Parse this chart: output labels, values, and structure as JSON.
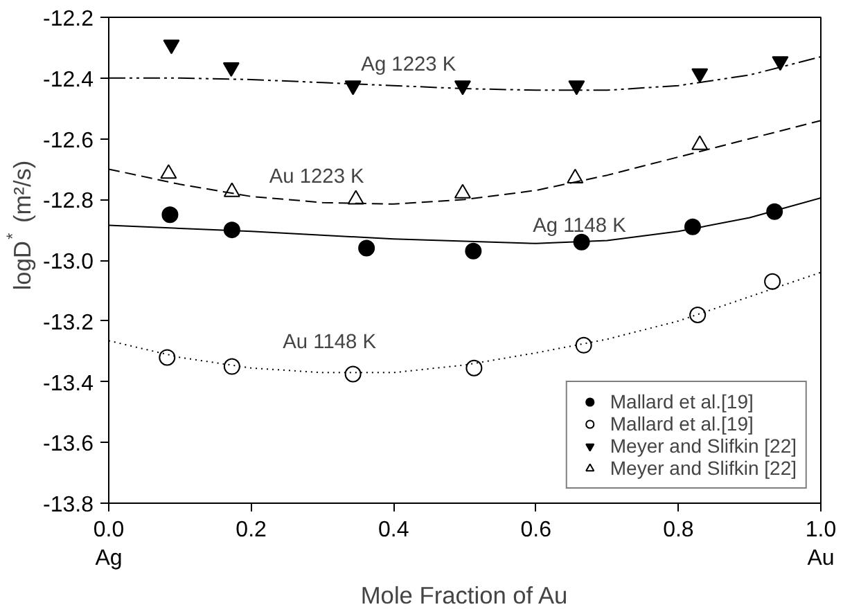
{
  "chart_data": {
    "type": "scatter",
    "xlabel": "Mole Fraction of Au",
    "ylabel": "logD$^{*}$ (m²/s)",
    "xlim": [
      0,
      1
    ],
    "ylim": [
      -13.8,
      -12.2
    ],
    "xticks": [
      {
        "value": 0,
        "label": "0.0\nAg"
      },
      0.2,
      0.4,
      0.6,
      0.8,
      {
        "value": 1,
        "label": "1.0\nAu"
      }
    ],
    "yticks": [
      -13.8,
      -13.6,
      -13.4,
      -13.2,
      {
        "value": -13.0,
        "label": "-13.0"
      },
      -12.8,
      -12.6,
      -12.4,
      -12.2
    ],
    "grid": false,
    "legend": "bottom right",
    "series": [
      {
        "name": "Mallard et al.[19]",
        "color": "#000000",
        "marker": "circle",
        "x": [
          0.086,
          0.173,
          0.362,
          0.512,
          0.664,
          0.82,
          0.935
        ],
        "values": [
          -12.85,
          -12.9,
          -12.96,
          -12.97,
          -12.94,
          -12.89,
          -12.84
        ]
      },
      {
        "name": "Mallard et al.[19]",
        "color": "#ffffff",
        "marker": "circle",
        "x": [
          0.082,
          0.173,
          0.343,
          0.513,
          0.667,
          0.827,
          0.932
        ],
        "values": [
          -13.32,
          -13.35,
          -13.375,
          -13.355,
          -13.28,
          -13.18,
          -13.07
        ]
      },
      {
        "name": "Meyer and Slifkin [22]",
        "color": "#000000",
        "marker": "triangle",
        "x": [
          0.088,
          0.172,
          0.343,
          0.497,
          0.657,
          0.83,
          0.943
        ],
        "values": [
          -12.29,
          -12.365,
          -12.425,
          -12.425,
          -12.425,
          -12.385,
          -12.345
        ]
      },
      {
        "name": "Meyer and Slifkin [22]",
        "color": "#ffffff",
        "marker": "triangle",
        "x": [
          0.084,
          0.173,
          0.347,
          0.497,
          0.655,
          0.83
        ],
        "values": [
          -12.715,
          -12.775,
          -12.8,
          -12.78,
          -12.73,
          -12.62
        ]
      },
      {
        "type": "line",
        "color": "#000000",
        "line_style": "dashdotdot",
        "x": [
          0,
          0.1,
          0.2,
          0.3,
          0.4,
          0.5,
          0.6,
          0.7,
          0.8,
          0.9,
          1.0
        ],
        "values": [
          -12.4,
          -12.4,
          -12.405,
          -12.415,
          -12.425,
          -12.435,
          -12.44,
          -12.44,
          -12.425,
          -12.39,
          -12.33
        ]
      },
      {
        "type": "line",
        "color": "#000000",
        "line_style": "dashed",
        "x": [
          0,
          0.1,
          0.2,
          0.3,
          0.4,
          0.5,
          0.6,
          0.7,
          0.8,
          0.9,
          1.0
        ],
        "values": [
          -12.7,
          -12.75,
          -12.79,
          -12.81,
          -12.815,
          -12.8,
          -12.77,
          -12.72,
          -12.66,
          -12.6,
          -12.54
        ]
      },
      {
        "type": "line",
        "color": "#000000",
        "line_style": "solid",
        "x": [
          0,
          0.2,
          0.4,
          0.6,
          0.7,
          0.8,
          0.9,
          1.0
        ],
        "values": [
          -12.885,
          -12.905,
          -12.93,
          -12.945,
          -12.935,
          -12.905,
          -12.86,
          -12.795
        ]
      },
      {
        "type": "line",
        "color": "#000000",
        "line_style": "dotted",
        "x": [
          0,
          0.1,
          0.2,
          0.3,
          0.4,
          0.5,
          0.6,
          0.7,
          0.8,
          0.9,
          1.0
        ],
        "values": [
          -13.265,
          -13.32,
          -13.355,
          -13.37,
          -13.37,
          -13.345,
          -13.305,
          -13.26,
          -13.2,
          -13.12,
          -13.04
        ]
      }
    ],
    "annotations": [
      "Ag 1223 K",
      "Au 1223 K",
      "Ag 1148 K",
      "Au 1148 K"
    ]
  }
}
